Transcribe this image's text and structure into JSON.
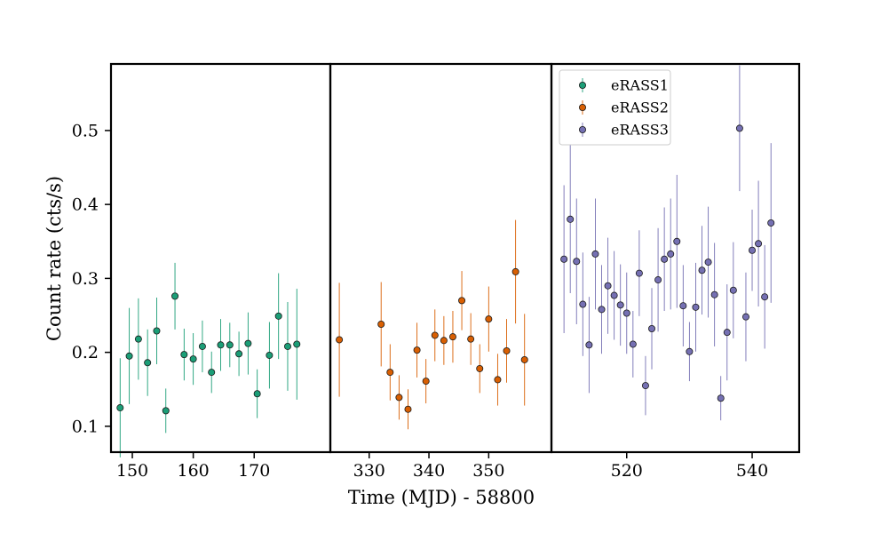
{
  "chart_data": {
    "type": "scatter",
    "title": "",
    "xlabel": "Time (MJD) - 58800",
    "ylabel": "Count rate (cts/s)",
    "ylim": [
      0.065,
      0.59
    ],
    "yticks": [
      0.1,
      0.2,
      0.3,
      0.4,
      0.5
    ],
    "ytick_labels": [
      "0.1",
      "0.2",
      "0.3",
      "0.4",
      "0.5"
    ],
    "legend_position": "upper-left of third panel",
    "colors": {
      "eRASS1": "#1b9e77",
      "eRASS2": "#d95f02",
      "eRASS3": "#7570b3"
    },
    "panels": [
      {
        "series": "eRASS1",
        "xlim": [
          146.5,
          182.5
        ],
        "xticks": [
          150,
          160,
          170
        ],
        "xtick_labels": [
          "150",
          "160",
          "170"
        ],
        "points": [
          {
            "x": 148.0,
            "y": 0.125,
            "err": 0.067
          },
          {
            "x": 149.5,
            "y": 0.195,
            "err": 0.065
          },
          {
            "x": 151.0,
            "y": 0.218,
            "err": 0.055
          },
          {
            "x": 152.5,
            "y": 0.186,
            "err": 0.045
          },
          {
            "x": 154.0,
            "y": 0.229,
            "err": 0.045
          },
          {
            "x": 155.5,
            "y": 0.121,
            "err": 0.03
          },
          {
            "x": 157.0,
            "y": 0.276,
            "err": 0.045
          },
          {
            "x": 158.5,
            "y": 0.197,
            "err": 0.035
          },
          {
            "x": 160.0,
            "y": 0.191,
            "err": 0.035
          },
          {
            "x": 161.5,
            "y": 0.208,
            "err": 0.035
          },
          {
            "x": 163.0,
            "y": 0.173,
            "err": 0.028
          },
          {
            "x": 164.5,
            "y": 0.21,
            "err": 0.035
          },
          {
            "x": 166.0,
            "y": 0.21,
            "err": 0.03
          },
          {
            "x": 167.5,
            "y": 0.198,
            "err": 0.03
          },
          {
            "x": 169.0,
            "y": 0.212,
            "err": 0.042
          },
          {
            "x": 170.5,
            "y": 0.144,
            "err": 0.033
          },
          {
            "x": 172.5,
            "y": 0.196,
            "err": 0.045
          },
          {
            "x": 174.0,
            "y": 0.249,
            "err": 0.058
          },
          {
            "x": 175.5,
            "y": 0.208,
            "err": 0.06
          },
          {
            "x": 177.0,
            "y": 0.211,
            "err": 0.075
          }
        ]
      },
      {
        "series": "eRASS2",
        "xlim": [
          323.5,
          360.5
        ],
        "xticks": [
          330,
          340,
          350
        ],
        "xtick_labels": [
          "330",
          "340",
          "350"
        ],
        "points": [
          {
            "x": 325.0,
            "y": 0.217,
            "err": 0.077
          },
          {
            "x": 332.0,
            "y": 0.238,
            "err": 0.057
          },
          {
            "x": 333.5,
            "y": 0.173,
            "err": 0.038
          },
          {
            "x": 335.0,
            "y": 0.139,
            "err": 0.03
          },
          {
            "x": 336.5,
            "y": 0.123,
            "err": 0.027
          },
          {
            "x": 338.0,
            "y": 0.203,
            "err": 0.037
          },
          {
            "x": 339.5,
            "y": 0.161,
            "err": 0.03
          },
          {
            "x": 341.0,
            "y": 0.223,
            "err": 0.035
          },
          {
            "x": 342.5,
            "y": 0.216,
            "err": 0.033
          },
          {
            "x": 344.0,
            "y": 0.221,
            "err": 0.035
          },
          {
            "x": 345.5,
            "y": 0.27,
            "err": 0.04
          },
          {
            "x": 347.0,
            "y": 0.218,
            "err": 0.035
          },
          {
            "x": 348.5,
            "y": 0.178,
            "err": 0.033
          },
          {
            "x": 350.0,
            "y": 0.245,
            "err": 0.044
          },
          {
            "x": 351.5,
            "y": 0.163,
            "err": 0.035
          },
          {
            "x": 353.0,
            "y": 0.202,
            "err": 0.043
          },
          {
            "x": 354.5,
            "y": 0.309,
            "err": 0.07
          },
          {
            "x": 356.0,
            "y": 0.19,
            "err": 0.062
          }
        ]
      },
      {
        "series": "eRASS3",
        "xlim": [
          508.0,
          547.5
        ],
        "xticks": [
          520,
          540
        ],
        "xtick_labels": [
          "520",
          "540"
        ],
        "points": [
          {
            "x": 510.0,
            "y": 0.326,
            "err": 0.1
          },
          {
            "x": 511.0,
            "y": 0.38,
            "err": 0.1
          },
          {
            "x": 512.0,
            "y": 0.323,
            "err": 0.085
          },
          {
            "x": 513.0,
            "y": 0.265,
            "err": 0.07
          },
          {
            "x": 514.0,
            "y": 0.21,
            "err": 0.065
          },
          {
            "x": 515.0,
            "y": 0.333,
            "err": 0.075
          },
          {
            "x": 516.0,
            "y": 0.258,
            "err": 0.06
          },
          {
            "x": 517.0,
            "y": 0.29,
            "err": 0.065
          },
          {
            "x": 518.0,
            "y": 0.277,
            "err": 0.06
          },
          {
            "x": 519.0,
            "y": 0.264,
            "err": 0.055
          },
          {
            "x": 520.0,
            "y": 0.253,
            "err": 0.055
          },
          {
            "x": 521.0,
            "y": 0.211,
            "err": 0.045
          },
          {
            "x": 522.0,
            "y": 0.307,
            "err": 0.058
          },
          {
            "x": 523.0,
            "y": 0.155,
            "err": 0.04
          },
          {
            "x": 524.0,
            "y": 0.232,
            "err": 0.055
          },
          {
            "x": 525.0,
            "y": 0.298,
            "err": 0.07
          },
          {
            "x": 526.0,
            "y": 0.326,
            "err": 0.07
          },
          {
            "x": 527.0,
            "y": 0.333,
            "err": 0.075
          },
          {
            "x": 528.0,
            "y": 0.35,
            "err": 0.09
          },
          {
            "x": 529.0,
            "y": 0.263,
            "err": 0.055
          },
          {
            "x": 530.0,
            "y": 0.201,
            "err": 0.04
          },
          {
            "x": 531.0,
            "y": 0.261,
            "err": 0.06
          },
          {
            "x": 532.0,
            "y": 0.311,
            "err": 0.06
          },
          {
            "x": 533.0,
            "y": 0.322,
            "err": 0.075
          },
          {
            "x": 534.0,
            "y": 0.278,
            "err": 0.07
          },
          {
            "x": 535.0,
            "y": 0.138,
            "err": 0.03
          },
          {
            "x": 536.0,
            "y": 0.227,
            "err": 0.065
          },
          {
            "x": 537.0,
            "y": 0.284,
            "err": 0.065
          },
          {
            "x": 538.0,
            "y": 0.503,
            "err": 0.085
          },
          {
            "x": 539.0,
            "y": 0.248,
            "err": 0.06
          },
          {
            "x": 540.0,
            "y": 0.338,
            "err": 0.055
          },
          {
            "x": 541.0,
            "y": 0.347,
            "err": 0.085
          },
          {
            "x": 542.0,
            "y": 0.275,
            "err": 0.07
          },
          {
            "x": 543.0,
            "y": 0.375,
            "err": 0.108
          }
        ]
      }
    ],
    "legend": [
      {
        "label": "eRASS1",
        "series": "eRASS1"
      },
      {
        "label": "eRASS2",
        "series": "eRASS2"
      },
      {
        "label": "eRASS3",
        "series": "eRASS3"
      }
    ]
  }
}
